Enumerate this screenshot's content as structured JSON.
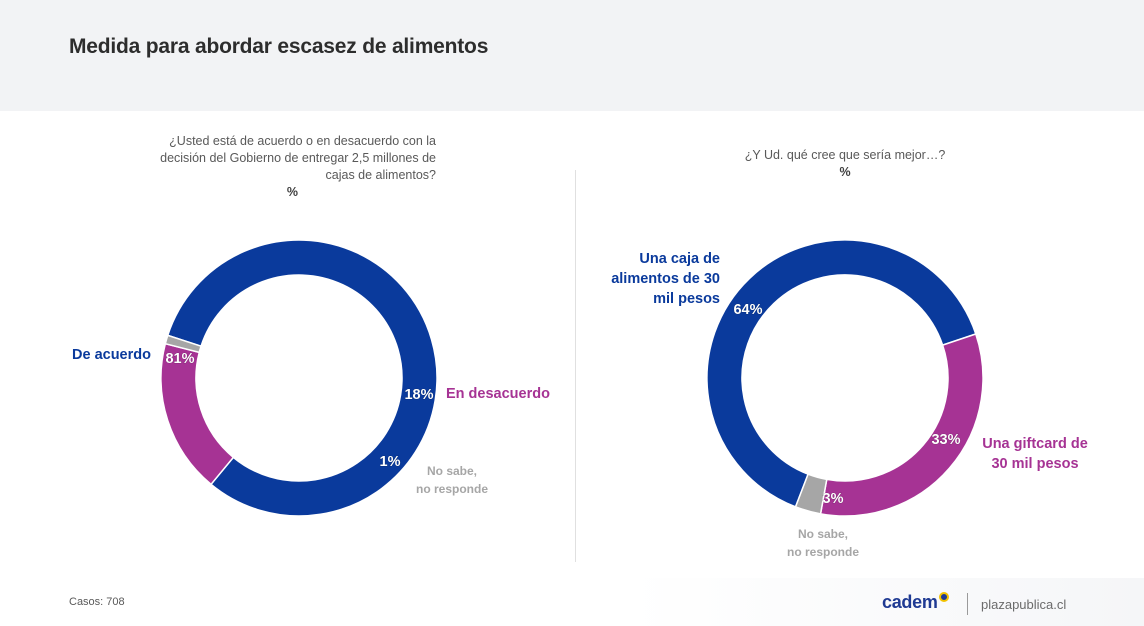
{
  "title": "Medida para abordar escasez de alimentos",
  "footer": {
    "casos": "Casos: 708",
    "logo": "cadem",
    "site": "plazapublica.cl",
    "logo_icon": "cadem-dot-icon"
  },
  "colors": {
    "blue": "#0a3a9c",
    "purple": "#a63394",
    "grey": "#a6a6a6"
  },
  "chart_data": [
    {
      "type": "pie",
      "variant": "donut",
      "question": "¿Usted está de acuerdo o en desacuerdo con la decisión del Gobierno de entregar 2,5 millones de cajas de alimentos?",
      "unit": "%",
      "slices": [
        {
          "label": "De acuerdo",
          "value": 81,
          "display": "81%",
          "color": "#0a3a9c"
        },
        {
          "label": "En desacuerdo",
          "value": 18,
          "display": "18%",
          "color": "#a63394"
        },
        {
          "label_line1": "No sabe,",
          "label_line2": "no responde",
          "value": 1,
          "display": "1%",
          "color": "#a6a6a6"
        }
      ]
    },
    {
      "type": "pie",
      "variant": "donut",
      "question": "¿Y Ud. qué cree que sería mejor…?",
      "unit": "%",
      "slices": [
        {
          "label_line1": "Una caja de",
          "label_line2": "alimentos de 30",
          "label_line3": "mil pesos",
          "value": 64,
          "display": "64%",
          "color": "#0a3a9c"
        },
        {
          "label_line1": "Una giftcard de",
          "label_line2": "30 mil pesos",
          "value": 33,
          "display": "33%",
          "color": "#a63394"
        },
        {
          "label_line1": "No sabe,",
          "label_line2": "no responde",
          "value": 3,
          "display": "3%",
          "color": "#a6a6a6"
        }
      ]
    }
  ]
}
